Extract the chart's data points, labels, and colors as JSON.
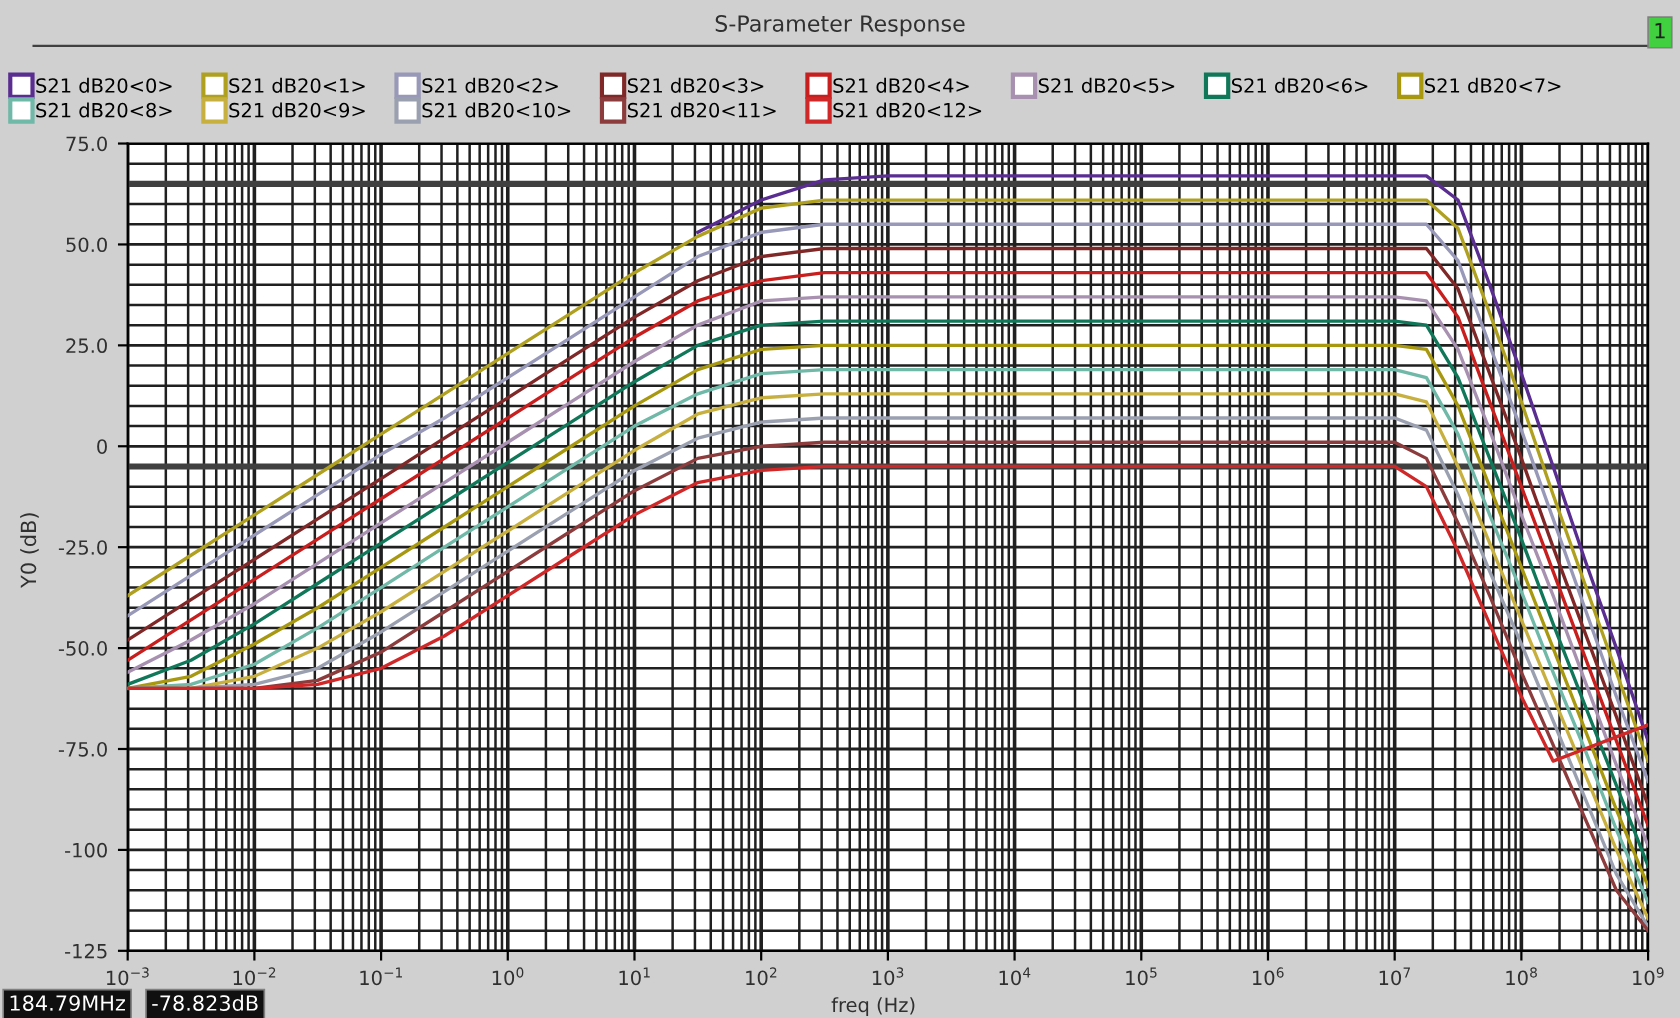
{
  "chart_data": {
    "type": "line",
    "title": "S-Parameter Response",
    "xlabel": "freq (Hz)",
    "ylabel": "Y0 (dB)",
    "annotations": [
      "184.79MHz",
      "-78.823dB",
      "1"
    ],
    "x": [
      0.001,
      0.00316,
      0.01,
      0.0316,
      0.1,
      0.316,
      1,
      3.16,
      10,
      31.6,
      100,
      316,
      1000,
      3160000,
      10000000,
      17800000,
      31600000,
      56200000,
      100000000,
      178000000,
      316000000,
      562000000,
      1000000000
    ],
    "log": "x",
    "xlim": [
      0.001,
      1000000000
    ],
    "xticks": [
      {
        "value": 0.001,
        "label": "10$^{−3}$"
      },
      {
        "value": 0.01,
        "label": "10$^{−2}$"
      },
      {
        "value": 0.1,
        "label": "10$^{−1}$"
      },
      {
        "value": 1,
        "label": "10$^{0}$"
      },
      {
        "value": 10,
        "label": "10$^{1}$"
      },
      {
        "value": 100,
        "label": "10$^{2}$"
      },
      {
        "value": 1000,
        "label": "10$^{3}$"
      },
      {
        "value": 10000,
        "label": "10$^{4}$"
      },
      {
        "value": 100000,
        "label": "10$^{5}$"
      },
      {
        "value": 1000000,
        "label": "10$^{6}$"
      },
      {
        "value": 10000000,
        "label": "10$^{7}$"
      },
      {
        "value": 100000000,
        "label": "10$^{8}$"
      },
      {
        "value": 1000000000,
        "label": "10$^{9}$"
      }
    ],
    "ylim": [
      -125,
      75
    ],
    "yticks": [
      {
        "value": 75,
        "label": "75.0"
      },
      {
        "value": 50,
        "label": "50.0"
      },
      {
        "value": 25,
        "label": "25.0"
      },
      0,
      {
        "value": -25,
        "label": "-25.0"
      },
      {
        "value": -50,
        "label": "-50.0"
      },
      {
        "value": -75,
        "label": "-75.0"
      },
      -100,
      -125
    ],
    "grid": true,
    "legend": "top",
    "line_style": "solid",
    "marker": "none",
    "ref_lines": [
      {
        "axis": "y",
        "value": 65,
        "color": "#404040"
      },
      {
        "axis": "y",
        "value": -5,
        "color": "#404040"
      }
    ],
    "series": [
      {
        "name": "S21 dB20<0>",
        "color": "#5a2d91",
        "values": [
          null,
          null,
          null,
          null,
          null,
          null,
          null,
          null,
          null,
          53,
          61,
          66,
          67,
          67,
          67,
          67,
          61,
          40,
          18,
          -5,
          -28,
          -50,
          -73
        ]
      },
      {
        "name": "S21 dB20<1>",
        "color": "#b0a020",
        "values": [
          -37,
          -27,
          -17,
          -7,
          3,
          13,
          23,
          33,
          43,
          52,
          59,
          61,
          61,
          61,
          61,
          61,
          54,
          33,
          11,
          -12,
          -34,
          -56,
          -78
        ]
      },
      {
        "name": "S21 dB20<2>",
        "color": "#9898b8",
        "values": [
          -42,
          -32,
          -22,
          -12,
          -2,
          7,
          17,
          27,
          37,
          47,
          53,
          55,
          55,
          55,
          55,
          55,
          46,
          25,
          4,
          -18,
          -40,
          -62,
          -83
        ]
      },
      {
        "name": "S21 dB20<3>",
        "color": "#802828",
        "values": [
          -48,
          -38,
          -28,
          -18,
          -8,
          2,
          12,
          22,
          32,
          41,
          47,
          49,
          49,
          49,
          49,
          49,
          39,
          18,
          -3,
          -25,
          -46,
          -67,
          -89
        ]
      },
      {
        "name": "S21 dB20<4>",
        "color": "#c81e1e",
        "values": [
          -53,
          -43,
          -33,
          -23,
          -13,
          -3,
          7,
          17,
          27,
          36,
          41,
          43,
          43,
          43,
          43,
          43,
          32,
          11,
          -10,
          -31,
          -52,
          -73,
          -94
        ]
      },
      {
        "name": "S21 dB20<5>",
        "color": "#a890b0",
        "values": [
          -56,
          -48,
          -39,
          -29,
          -19,
          -9,
          1,
          11,
          21,
          30,
          36,
          37,
          37,
          37,
          37,
          36,
          24,
          4,
          -17,
          -37,
          -58,
          -79,
          -99
        ]
      },
      {
        "name": "S21 dB20<6>",
        "color": "#107858",
        "values": [
          -59,
          -53,
          -44,
          -34,
          -24,
          -14,
          -4,
          6,
          16,
          25,
          30,
          31,
          31,
          31,
          31,
          30,
          17,
          -3,
          -23,
          -44,
          -64,
          -84,
          -104
        ]
      },
      {
        "name": "S21 dB20<7>",
        "color": "#a89810",
        "values": [
          -60,
          -57,
          -49,
          -40,
          -30,
          -20,
          -10,
          0,
          10,
          19,
          24,
          25,
          25,
          25,
          25,
          24,
          10,
          -10,
          -30,
          -50,
          -70,
          -90,
          -109
        ]
      },
      {
        "name": "S21 dB20<8>",
        "color": "#70b8a8",
        "values": [
          -60,
          -59,
          -54,
          -45,
          -35,
          -25,
          -15,
          -5,
          5,
          13,
          18,
          19,
          19,
          19,
          19,
          17,
          3,
          -17,
          -36,
          -56,
          -75,
          -95,
          -113
        ]
      },
      {
        "name": "S21 dB20<9>",
        "color": "#c8b040",
        "values": [
          -60,
          -60,
          -57,
          -50,
          -41,
          -31,
          -21,
          -11,
          -1,
          8,
          12,
          13,
          13,
          13,
          13,
          11,
          -5,
          -24,
          -43,
          -62,
          -81,
          -100,
          -117
        ]
      },
      {
        "name": "S21 dB20<10>",
        "color": "#9aa0b0",
        "values": [
          -60,
          -60,
          -59,
          -55,
          -46,
          -36,
          -26,
          -16,
          -6,
          2,
          6,
          7,
          7,
          7,
          7,
          4,
          -12,
          -31,
          -49,
          -68,
          -87,
          -106,
          -119
        ]
      },
      {
        "name": "S21 dB20<11>",
        "color": "#8c3c3c",
        "values": [
          -60,
          -60,
          -60,
          -58,
          -51,
          -41,
          -31,
          -21,
          -11,
          -3,
          0,
          1,
          1,
          1,
          1,
          -3,
          -19,
          -37,
          -56,
          -74,
          -92,
          -110,
          -120
        ]
      },
      {
        "name": "S21 dB20<12>",
        "color": "#d02828",
        "values": [
          -60,
          -60,
          -60,
          -59,
          -55,
          -47,
          -37,
          -27,
          -17,
          -9,
          -6,
          -5,
          -5,
          -5,
          -5,
          -10,
          -26,
          -44,
          -62,
          -78,
          -75,
          -72,
          -69
        ]
      }
    ]
  }
}
